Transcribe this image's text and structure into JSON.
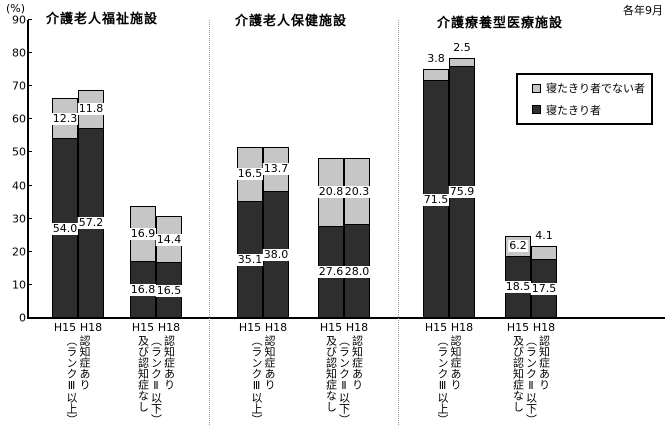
{
  "chart_data": {
    "type": "bar",
    "stacked": true,
    "note": "各年9月",
    "unit_label": "(%)",
    "ylim": [
      0,
      90
    ],
    "ytick_step": 10,
    "grid": false,
    "legend_position": "right",
    "legend": [
      {
        "key": "not_bedridden",
        "label": "寝たきり者でない者",
        "color": "#c6c6c6"
      },
      {
        "key": "bedridden",
        "label": "寝たきり者",
        "color": "#2e2e2e"
      }
    ],
    "groups": [
      {
        "facility": "介護老人福祉施設",
        "categories": [
          {
            "label": "認知症あり（ランクⅢ以上）",
            "label_columns": [
              "認知症あり",
              "（ランクⅢ以上）"
            ],
            "bars": [
              {
                "year": "H15",
                "bedridden": 54.0,
                "not_bedridden": 12.3
              },
              {
                "year": "H18",
                "bedridden": 57.2,
                "not_bedridden": 11.8
              }
            ]
          },
          {
            "label": "認知症あり（ランクⅡ以下）及び認知症なし",
            "label_columns": [
              "認知症あり",
              "（ランクⅡ以下）",
              "及び認知症なし"
            ],
            "bars": [
              {
                "year": "H15",
                "bedridden": 16.8,
                "not_bedridden": 16.9
              },
              {
                "year": "H18",
                "bedridden": 16.5,
                "not_bedridden": 14.4
              }
            ]
          }
        ]
      },
      {
        "facility": "介護老人保健施設",
        "categories": [
          {
            "label": "認知症あり（ランクⅢ以上）",
            "label_columns": [
              "認知症あり",
              "（ランクⅢ以上）"
            ],
            "bars": [
              {
                "year": "H15",
                "bedridden": 35.1,
                "not_bedridden": 16.5
              },
              {
                "year": "H18",
                "bedridden": 38.0,
                "not_bedridden": 13.7
              }
            ]
          },
          {
            "label": "認知症あり（ランクⅡ以下）及び認知症なし",
            "label_columns": [
              "認知症あり",
              "（ランクⅡ以下）",
              "及び認知症なし"
            ],
            "bars": [
              {
                "year": "H15",
                "bedridden": 27.6,
                "not_bedridden": 20.8
              },
              {
                "year": "H18",
                "bedridden": 28.0,
                "not_bedridden": 20.3
              }
            ]
          }
        ]
      },
      {
        "facility": "介護療養型医療施設",
        "categories": [
          {
            "label": "認知症あり（ランクⅢ以上）",
            "label_columns": [
              "認知症あり",
              "（ランクⅢ以上）"
            ],
            "bars": [
              {
                "year": "H15",
                "bedridden": 71.5,
                "not_bedridden": 3.8
              },
              {
                "year": "H18",
                "bedridden": 75.9,
                "not_bedridden": 2.5
              }
            ]
          },
          {
            "label": "認知症あり（ランクⅡ以下）及び認知症なし",
            "label_columns": [
              "認知症あり",
              "（ランクⅡ以下）",
              "及び認知症なし"
            ],
            "bars": [
              {
                "year": "H15",
                "bedridden": 18.5,
                "not_bedridden": 6.2
              },
              {
                "year": "H18",
                "bedridden": 17.5,
                "not_bedridden": 4.1
              }
            ]
          }
        ]
      }
    ]
  }
}
